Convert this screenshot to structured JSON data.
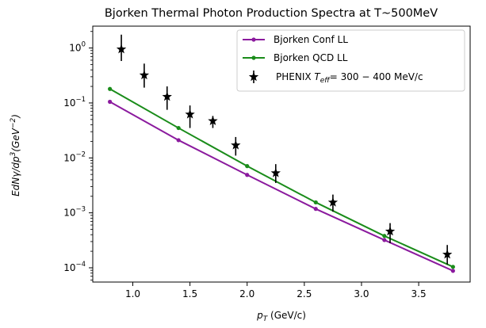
{
  "chart_data": {
    "type": "line",
    "title": "Bjorken Thermal Photon Production Spectra at T~500MeV",
    "xlabel": {
      "main": "p",
      "sub": "T",
      "rest": " (GeV/c)"
    },
    "ylabel": {
      "pre": "EdNγ/dp",
      "sup1": "3",
      "mid": "(GeV",
      "sup2": "−2",
      "post": ")"
    },
    "xlim": [
      0.65,
      3.95
    ],
    "ylim": [
      5.5e-05,
      2.5
    ],
    "y_scale": "log",
    "grid": false,
    "legend_position": "top-right",
    "x_ticks": [
      1.0,
      1.5,
      2.0,
      2.5,
      3.0,
      3.5
    ],
    "x_tick_labels": [
      "1.0",
      "1.5",
      "2.0",
      "2.5",
      "3.0",
      "3.5"
    ],
    "y_ticks": [
      {
        "value": 0.0001,
        "base": "10",
        "exp": "−4"
      },
      {
        "value": 0.001,
        "base": "10",
        "exp": "−3"
      },
      {
        "value": 0.01,
        "base": "10",
        "exp": "−2"
      },
      {
        "value": 0.1,
        "base": "10",
        "exp": "−1"
      },
      {
        "value": 1,
        "base": "10",
        "exp": "0"
      }
    ],
    "series": [
      {
        "name": "Bjorken Conf LL",
        "kind": "line",
        "color": "#8b1a9e",
        "x": [
          0.8,
          1.4,
          2.0,
          2.6,
          3.2,
          3.8
        ],
        "y": [
          0.105,
          0.021,
          0.0049,
          0.00118,
          0.00032,
          8.8e-05
        ]
      },
      {
        "name": "Bjorken QCD LL",
        "kind": "line",
        "color": "#1a8c1a",
        "x": [
          0.8,
          1.4,
          2.0,
          2.6,
          3.2,
          3.8
        ],
        "y": [
          0.18,
          0.035,
          0.0071,
          0.00155,
          0.00038,
          0.000104
        ]
      },
      {
        "name": "PHENIX",
        "name_italic": "T",
        "name_sub": "eff",
        "name_rest": "= 300 − 400 MeV/c",
        "kind": "errorbar",
        "color": "#000000",
        "x": [
          0.9,
          1.1,
          1.3,
          1.5,
          1.7,
          1.9,
          2.25,
          2.75,
          3.25,
          3.75
        ],
        "y": [
          0.95,
          0.32,
          0.13,
          0.062,
          0.047,
          0.017,
          0.0053,
          0.00155,
          0.00046,
          0.000175
        ],
        "y_low": [
          0.58,
          0.19,
          0.075,
          0.035,
          0.035,
          0.011,
          0.0035,
          0.00105,
          0.00028,
          0.000115
        ],
        "y_high": [
          1.75,
          0.52,
          0.2,
          0.09,
          0.058,
          0.024,
          0.0077,
          0.00215,
          0.00065,
          0.00026
        ]
      }
    ]
  }
}
